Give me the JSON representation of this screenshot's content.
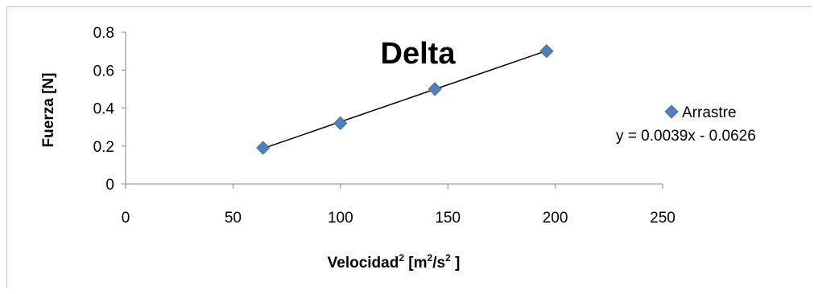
{
  "chart_data": {
    "type": "scatter",
    "title": "Delta",
    "xlabel_main": "Velocidad",
    "xlabel_sup1": "2",
    "xlabel_mid": " [m",
    "xlabel_sup2": "2",
    "xlabel_mid2": "/s",
    "xlabel_sup3": "2",
    "xlabel_end": " ]",
    "ylabel": "Fuerza [N]",
    "xlim": [
      0,
      250
    ],
    "ylim": [
      0,
      0.8
    ],
    "xticks": [
      0,
      50,
      100,
      150,
      200,
      250
    ],
    "xtick_labels": [
      "0",
      "50",
      "100",
      "150",
      "200",
      "250"
    ],
    "yticks": [
      0,
      0.2,
      0.4,
      0.6,
      0.8
    ],
    "ytick_labels": [
      "0",
      "0.2",
      "0.4",
      "0.6",
      "0.8"
    ],
    "grid": false,
    "legend_position": "right",
    "series": [
      {
        "name": "Arrastre",
        "color": "#4F81BD",
        "marker": "diamond",
        "x": [
          64,
          100,
          144,
          196
        ],
        "y": [
          0.19,
          0.32,
          0.5,
          0.7
        ]
      }
    ],
    "trendline": {
      "type": "linear",
      "slope": 0.0039,
      "intercept": -0.0626,
      "x_range": [
        64,
        196
      ],
      "equation_label": "y = 0.0039x - 0.0626",
      "color": "#000000"
    }
  }
}
